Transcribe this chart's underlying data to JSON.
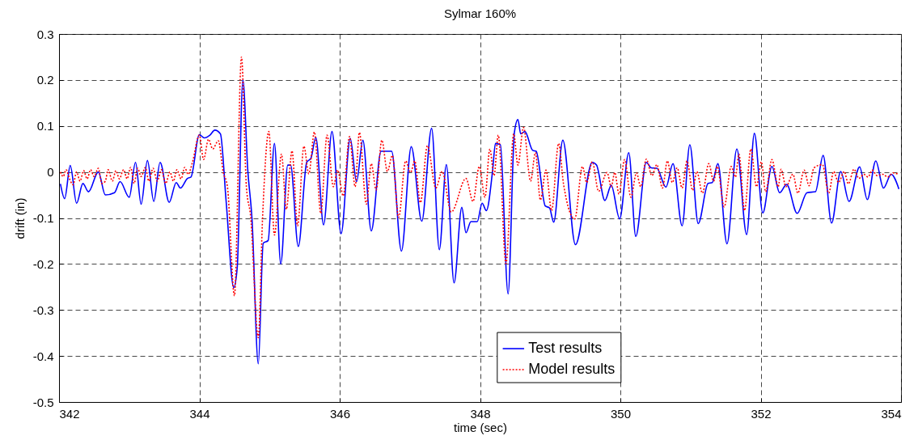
{
  "chart_data": {
    "type": "line",
    "title": "Sylmar 160%",
    "xlabel": "time (sec)",
    "ylabel": "drift (in)",
    "xlim": [
      342,
      354
    ],
    "xticks": [
      342,
      344,
      346,
      348,
      350,
      352,
      354
    ],
    "ylim": [
      -0.5,
      0.3
    ],
    "yticks": [
      -0.5,
      -0.4,
      -0.3,
      -0.2,
      -0.1,
      0,
      0.1,
      0.2,
      0.3
    ],
    "grid": true,
    "legend": "bottom",
    "marker": "none",
    "series": [
      {
        "name": "Test results",
        "color": "#0000ff",
        "line_style": "solid",
        "x": [
          342.02,
          342.08,
          342.16,
          342.25,
          342.34,
          342.42,
          342.56,
          342.66,
          342.79,
          342.87,
          343.0,
          343.09,
          343.17,
          343.26,
          343.35,
          343.44,
          343.57,
          343.67,
          343.73,
          343.83,
          343.88,
          344.0,
          344.07,
          344.15,
          344.22,
          344.3,
          344.38,
          344.49,
          344.54,
          344.62,
          344.69,
          344.75,
          344.84,
          344.91,
          344.98,
          345.07,
          345.16,
          345.26,
          345.3,
          345.41,
          345.53,
          345.59,
          345.66,
          345.77,
          345.89,
          346.02,
          346.15,
          346.24,
          346.33,
          346.45,
          346.59,
          346.74,
          346.88,
          347.02,
          347.17,
          347.31,
          347.42,
          347.52,
          347.63,
          347.74,
          347.8,
          347.87,
          347.96,
          348.03,
          348.09,
          348.18,
          348.22,
          348.29,
          348.4,
          348.49,
          348.54,
          348.58,
          348.64,
          348.75,
          348.8,
          348.93,
          348.99,
          349.05,
          349.18,
          349.36,
          349.6,
          349.66,
          349.78,
          349.87,
          349.99,
          350.12,
          350.22,
          350.37,
          350.44,
          350.52,
          350.65,
          350.75,
          350.88,
          350.99,
          351.11,
          351.25,
          351.31,
          351.39,
          351.52,
          351.66,
          351.8,
          351.91,
          352.03,
          352.16,
          352.27,
          352.37,
          352.52,
          352.66,
          352.78,
          352.89,
          353.01,
          353.14,
          353.26,
          353.41,
          353.52,
          353.64,
          353.75,
          353.86,
          353.97
        ],
        "values": [
          -0.026,
          -0.058,
          0.014,
          -0.068,
          -0.025,
          -0.043,
          0,
          -0.05,
          -0.045,
          -0.021,
          -0.055,
          0.021,
          -0.07,
          0.025,
          -0.064,
          0.021,
          -0.066,
          -0.023,
          -0.035,
          -0.014,
          -0.011,
          0.081,
          0.074,
          0.08,
          0.091,
          0.083,
          -0.061,
          -0.251,
          -0.207,
          0.2,
          0.004,
          -0.102,
          -0.417,
          -0.155,
          -0.149,
          0.062,
          -0.2,
          0.015,
          0.015,
          -0.162,
          0.021,
          0.03,
          0.075,
          -0.115,
          0.088,
          -0.134,
          0.073,
          -0.021,
          0.069,
          -0.128,
          0.045,
          0.045,
          -0.172,
          0.055,
          -0.107,
          0.095,
          -0.169,
          0.016,
          -0.241,
          -0.077,
          -0.132,
          -0.108,
          -0.108,
          -0.068,
          -0.084,
          0.004,
          0.062,
          0.059,
          -0.265,
          0.086,
          0.114,
          0.083,
          0.088,
          0.047,
          0.045,
          -0.074,
          -0.078,
          -0.109,
          0.069,
          -0.158,
          0.021,
          0.015,
          -0.062,
          -0.029,
          -0.102,
          0.042,
          -0.14,
          0.021,
          0.009,
          0.008,
          -0.033,
          0.018,
          -0.117,
          0.059,
          -0.112,
          -0.025,
          -0.023,
          0.018,
          -0.156,
          0.05,
          -0.136,
          0.084,
          -0.089,
          0.012,
          -0.045,
          -0.027,
          -0.09,
          -0.045,
          -0.043,
          0.036,
          -0.111,
          0.001,
          -0.064,
          0.011,
          -0.06,
          0.024,
          -0.035,
          -0.005,
          -0.037
        ]
      },
      {
        "name": "Model results",
        "color": "#ff0000",
        "line_style": "dotted",
        "x": [
          342.02,
          342.06,
          342.1,
          342.15,
          342.2,
          342.25,
          342.3,
          342.35,
          342.4,
          342.45,
          342.5,
          342.56,
          342.61,
          342.66,
          342.7,
          342.76,
          342.81,
          342.86,
          342.92,
          342.97,
          343.02,
          343.07,
          343.12,
          343.17,
          343.23,
          343.28,
          343.34,
          343.4,
          343.46,
          343.52,
          343.58,
          343.63,
          343.68,
          343.74,
          343.79,
          343.84,
          343.9,
          344.0,
          344.06,
          344.13,
          344.19,
          344.27,
          344.34,
          344.4,
          344.5,
          344.6,
          344.67,
          344.73,
          344.84,
          344.9,
          344.99,
          345.07,
          345.17,
          345.24,
          345.32,
          345.4,
          345.49,
          345.56,
          345.64,
          345.73,
          345.82,
          345.91,
          345.97,
          346.05,
          346.14,
          346.22,
          346.28,
          346.38,
          346.45,
          346.52,
          346.6,
          346.68,
          346.75,
          346.84,
          346.94,
          347.01,
          347.07,
          347.15,
          347.25,
          347.37,
          347.46,
          347.59,
          347.8,
          347.9,
          347.99,
          348.07,
          348.14,
          348.2,
          348.26,
          348.37,
          348.48,
          348.54,
          348.62,
          348.72,
          348.79,
          348.86,
          348.94,
          349.02,
          349.12,
          349.19,
          349.35,
          349.46,
          349.52,
          349.6,
          349.69,
          349.81,
          349.87,
          349.92,
          349.98,
          350.06,
          350.15,
          350.23,
          350.29,
          350.37,
          350.45,
          350.52,
          350.6,
          350.67,
          350.74,
          350.81,
          350.88,
          350.95,
          351.03,
          351.09,
          351.17,
          351.26,
          351.33,
          351.38,
          351.48,
          351.58,
          351.64,
          351.69,
          351.77,
          351.86,
          351.94,
          352.01,
          352.07,
          352.16,
          352.25,
          352.29,
          352.36,
          352.46,
          352.53,
          352.62,
          352.69,
          352.76,
          352.88,
          352.97,
          353.04,
          353.11,
          353.19,
          353.25,
          353.33,
          353.4,
          353.47,
          353.53,
          353.59,
          353.66,
          353.74,
          353.81,
          353.89,
          353.96
        ],
        "values": [
          0,
          -0.01,
          0.005,
          -0.015,
          -0.028,
          0,
          -0.02,
          0.003,
          -0.015,
          0.005,
          -0.01,
          0.008,
          -0.025,
          -0.02,
          0.005,
          -0.02,
          0.003,
          -0.015,
          0.005,
          -0.015,
          0.01,
          -0.025,
          0.008,
          -0.01,
          0.01,
          -0.02,
          0.008,
          -0.02,
          0.005,
          -0.025,
          0,
          -0.02,
          0.005,
          -0.015,
          0.01,
          -0.005,
          0.02,
          0.08,
          0.027,
          0.071,
          0.05,
          0.068,
          0,
          -0.032,
          -0.269,
          0.25,
          -0.032,
          -0.096,
          -0.36,
          -0.102,
          0.088,
          -0.137,
          0.039,
          -0.081,
          0.046,
          -0.117,
          0.056,
          -0.004,
          0.087,
          -0.09,
          0.08,
          -0.032,
          0.004,
          -0.052,
          0.077,
          -0.032,
          0.086,
          -0.07,
          0.018,
          -0.039,
          0.069,
          0.001,
          0.036,
          -0.099,
          0.024,
          -0.001,
          0.024,
          -0.067,
          0.057,
          -0.035,
          0.001,
          -0.087,
          -0.014,
          -0.064,
          0.012,
          -0.055,
          0.05,
          -0.008,
          0.08,
          -0.199,
          0.083,
          0.015,
          0.097,
          -0.02,
          0.042,
          -0.061,
          0.004,
          -0.084,
          0.062,
          -0.026,
          -0.102,
          0.012,
          -0.023,
          0.022,
          -0.042,
          -0.001,
          -0.032,
          -0.001,
          -0.048,
          0.027,
          -0.055,
          -0.002,
          -0.032,
          0.028,
          -0.008,
          0.016,
          -0.035,
          0.024,
          -0.023,
          0.009,
          -0.035,
          0.024,
          -0.04,
          0.001,
          -0.046,
          0.018,
          -0.02,
          0.012,
          -0.076,
          0.012,
          -0.011,
          0.039,
          -0.084,
          0.05,
          -0.032,
          0.022,
          -0.043,
          0.027,
          -0.032,
          0.006,
          -0.032,
          -0.005,
          -0.046,
          0.004,
          -0.03,
          0.009,
          0.016,
          -0.046,
          0.001,
          -0.023,
          0.001,
          -0.026,
          0.006,
          -0.014,
          -0.005,
          -0.011,
          0.004,
          -0.008,
          -0.005,
          -0.011,
          -0.002,
          -0.005
        ]
      }
    ]
  }
}
